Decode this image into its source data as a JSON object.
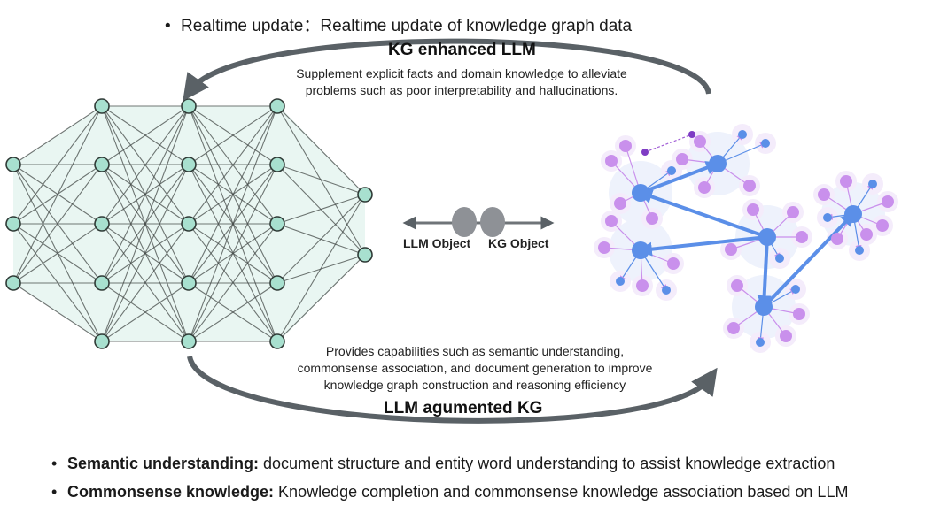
{
  "top_bullet": {
    "marker": "•",
    "text": "Realtime update：Realtime update of knowledge graph data"
  },
  "kg_enhanced_llm": {
    "title": "KG enhanced LLM",
    "description_line1": "Supplement explicit facts and domain knowledge to alleviate",
    "description_line2": "problems such as poor interpretability and hallucinations."
  },
  "llm_augmented_kg": {
    "title": "LLM agumented KG",
    "description_line1": "Provides capabilities such as semantic understanding,",
    "description_line2": "commonsense association, and document generation to improve",
    "description_line3": "knowledge graph construction and reasoning efficiency"
  },
  "objects": {
    "llm_label": "LLM Object",
    "kg_label": "KG Object"
  },
  "bottom_bullets": [
    {
      "marker": "•",
      "term": "Semantic understanding:",
      "text": " document structure and entity word understanding to assist knowledge extraction"
    },
    {
      "marker": "•",
      "term": "Commonsense knowledge:",
      "text": " Knowledge completion and commonsense knowledge association based on LLM"
    }
  ],
  "colors": {
    "arc": "#5a6166",
    "nn_node": "#a8e0cf",
    "nn_edge": "#444a48",
    "nn_fill": "#dff2ec",
    "kg_node_blue": "#5b8fe8",
    "kg_node_purple": "#c990ec",
    "object_oval": "#8e9196"
  }
}
